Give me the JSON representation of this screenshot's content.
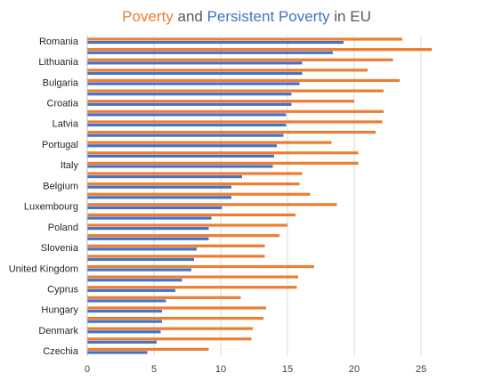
{
  "chart_data": {
    "type": "bar",
    "orientation": "horizontal",
    "title_parts": [
      {
        "text": "Poverty",
        "color": "#ED7D31"
      },
      {
        "text": " and ",
        "color": "#595959"
      },
      {
        "text": "Persistent Poverty",
        "color": "#4472C4"
      },
      {
        "text": " in EU",
        "color": "#595959"
      }
    ],
    "categories": [
      "Romania",
      "",
      "Lithuania",
      "",
      "Bulgaria",
      "",
      "Croatia",
      "",
      "Latvia",
      "",
      "Portugal",
      "",
      "Italy",
      "",
      "Belgium",
      "",
      "Luxembourg",
      "",
      "Poland",
      "",
      "Slovenia",
      "",
      "United Kingdom",
      "",
      "Cyprus",
      "",
      "Hungary",
      "",
      "Denmark",
      "",
      "Czechia"
    ],
    "series": [
      {
        "name": "",
        "color": "#ED7D31",
        "values": [
          23.6,
          25.8,
          22.9,
          21.0,
          23.4,
          22.2,
          20.0,
          22.2,
          22.1,
          21.6,
          18.3,
          20.3,
          20.3,
          16.1,
          15.9,
          16.7,
          18.7,
          15.6,
          15.0,
          14.4,
          13.3,
          13.3,
          17.0,
          15.8,
          15.7,
          11.5,
          13.4,
          13.2,
          12.4,
          12.3,
          9.1
        ]
      },
      {
        "name": "",
        "color": "#4472C4",
        "values": [
          19.2,
          18.4,
          16.1,
          16.1,
          15.9,
          15.3,
          15.3,
          14.9,
          14.9,
          14.7,
          14.2,
          14.0,
          13.9,
          11.6,
          10.8,
          10.8,
          10.1,
          9.3,
          9.1,
          9.1,
          8.2,
          8.0,
          7.8,
          7.1,
          6.6,
          5.9,
          5.6,
          5.6,
          5.5,
          5.2,
          4.5
        ]
      }
    ],
    "xlim": [
      0,
      27
    ],
    "xticks": [
      0,
      5,
      10,
      15,
      20,
      25
    ],
    "grid": "vertical",
    "legend": "none"
  },
  "colors": {
    "poverty": "#ED7D31",
    "persistent": "#4472C4",
    "grid": "#D9D9D9",
    "axis": "#BFBFBF"
  }
}
